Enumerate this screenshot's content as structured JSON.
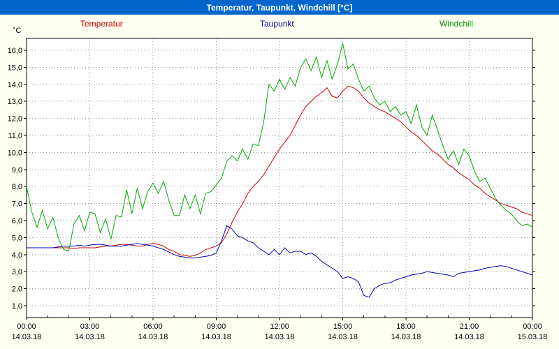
{
  "window": {
    "title": "Temperatur, Taupunkt, Windchill [°C]"
  },
  "colors": {
    "titlebar_bg": "#0066cc",
    "titlebar_text": "#ffffff",
    "page_bg": "#fffff2",
    "plot_bg": "#ffffff",
    "grid": "#999999",
    "axis": "#000000",
    "temperatur": "#cc0000",
    "taupunkt": "#0000bb",
    "windchill": "#00aa00"
  },
  "legend": [
    {
      "label": "Temperatur",
      "color": "#cc0000"
    },
    {
      "label": "Taupunkt",
      "color": "#000099"
    },
    {
      "label": "Windchill",
      "color": "#009900"
    }
  ],
  "chart_data": {
    "type": "line",
    "title": "Temperatur, Taupunkt, Windchill [°C]",
    "ylabel": "°C",
    "xlabel": "",
    "grid": true,
    "legend_position": "top",
    "ylim": [
      0.3,
      16.7
    ],
    "xlim": [
      0,
      24
    ],
    "x_step_hours": 0.25,
    "y_ticks": {
      "values": [
        1,
        2,
        3,
        4,
        5,
        6,
        7,
        8,
        9,
        10,
        11,
        12,
        13,
        14,
        15,
        16
      ],
      "labels": [
        "1,0",
        "2,0",
        "3,0",
        "4,0",
        "5,0",
        "6,0",
        "7,0",
        "8,0",
        "9,0",
        "10,0",
        "11,0",
        "12,0",
        "13,0",
        "14,0",
        "15,0",
        "16,0"
      ]
    },
    "x_ticks": [
      {
        "hour": 0,
        "time": "00:00",
        "date": "14.03.18"
      },
      {
        "hour": 3,
        "time": "03:00",
        "date": "14.03.18"
      },
      {
        "hour": 6,
        "time": "06:00",
        "date": "14.03.18"
      },
      {
        "hour": 9,
        "time": "09:00",
        "date": "14.03.18"
      },
      {
        "hour": 12,
        "time": "12:00",
        "date": "14.03.18"
      },
      {
        "hour": 15,
        "time": "15:00",
        "date": "14.03.18"
      },
      {
        "hour": 18,
        "time": "18:00",
        "date": "14.03.18"
      },
      {
        "hour": 21,
        "time": "21:00",
        "date": "14.03.18"
      },
      {
        "hour": 24,
        "time": "00:00",
        "date": "15.03.18"
      }
    ],
    "series": [
      {
        "name": "Temperatur",
        "color": "#cc0000",
        "values": [
          4.4,
          4.4,
          4.4,
          4.4,
          4.4,
          4.4,
          4.4,
          4.4,
          4.4,
          4.35,
          4.4,
          4.4,
          4.4,
          4.4,
          4.45,
          4.5,
          4.5,
          4.55,
          4.6,
          4.6,
          4.55,
          4.5,
          4.5,
          4.6,
          4.65,
          4.6,
          4.5,
          4.3,
          4.2,
          4.0,
          3.95,
          3.9,
          3.95,
          4.1,
          4.3,
          4.4,
          4.5,
          4.7,
          5.2,
          5.9,
          6.5,
          7.0,
          7.6,
          8.0,
          8.3,
          8.7,
          9.2,
          9.7,
          10.2,
          10.6,
          11.0,
          11.6,
          12.2,
          12.7,
          13.0,
          13.3,
          13.5,
          13.8,
          13.3,
          13.2,
          13.6,
          13.9,
          13.8,
          13.6,
          13.2,
          12.9,
          12.7,
          12.5,
          12.4,
          12.2,
          12.0,
          11.8,
          11.5,
          11.2,
          11.0,
          10.7,
          10.4,
          10.1,
          9.9,
          9.6,
          9.3,
          9.1,
          8.8,
          8.6,
          8.4,
          8.1,
          7.9,
          7.6,
          7.4,
          7.2,
          7.0,
          6.9,
          6.8,
          6.7,
          6.5,
          6.4,
          6.3
        ]
      },
      {
        "name": "Taupunkt",
        "color": "#0000bb",
        "values": [
          4.4,
          4.4,
          4.4,
          4.4,
          4.4,
          4.4,
          4.45,
          4.5,
          4.5,
          4.5,
          4.55,
          4.5,
          4.55,
          4.6,
          4.6,
          4.55,
          4.5,
          4.5,
          4.5,
          4.55,
          4.6,
          4.65,
          4.6,
          4.55,
          4.5,
          4.4,
          4.3,
          4.15,
          4.0,
          3.9,
          3.85,
          3.8,
          3.8,
          3.85,
          3.9,
          3.95,
          4.1,
          4.8,
          5.7,
          5.5,
          5.1,
          5.0,
          4.8,
          4.7,
          4.4,
          4.2,
          4.0,
          4.3,
          4.0,
          4.4,
          4.1,
          4.2,
          4.2,
          4.0,
          4.1,
          3.9,
          3.6,
          3.4,
          3.2,
          3.0,
          2.6,
          2.7,
          2.6,
          2.4,
          1.6,
          1.5,
          2.0,
          2.2,
          2.3,
          2.35,
          2.5,
          2.6,
          2.7,
          2.8,
          2.85,
          2.9,
          3.0,
          2.95,
          2.9,
          2.85,
          2.8,
          2.7,
          2.9,
          2.95,
          3.0,
          3.05,
          3.1,
          3.2,
          3.25,
          3.3,
          3.35,
          3.3,
          3.2,
          3.1,
          3.0,
          2.9,
          2.8
        ]
      },
      {
        "name": "Windchill",
        "color": "#00aa00",
        "values": [
          8.0,
          6.5,
          5.6,
          6.6,
          5.5,
          6.2,
          5.0,
          4.3,
          4.2,
          5.8,
          6.3,
          5.4,
          6.5,
          6.4,
          5.3,
          6.1,
          4.9,
          6.3,
          6.2,
          7.8,
          6.4,
          7.9,
          6.7,
          7.7,
          8.2,
          7.6,
          8.3,
          7.2,
          6.3,
          6.3,
          7.5,
          6.7,
          7.5,
          6.4,
          7.6,
          7.7,
          8.1,
          8.5,
          9.5,
          9.8,
          9.5,
          10.2,
          9.6,
          10.5,
          10.4,
          11.8,
          14.0,
          13.6,
          14.3,
          13.7,
          14.4,
          13.9,
          15.0,
          15.5,
          14.8,
          15.6,
          14.4,
          15.4,
          14.3,
          15.2,
          16.4,
          14.9,
          15.2,
          14.3,
          13.6,
          13.9,
          13.2,
          12.8,
          13.0,
          12.4,
          12.7,
          12.2,
          12.4,
          11.7,
          12.8,
          11.5,
          11.0,
          12.2,
          11.3,
          10.4,
          9.6,
          10.1,
          9.3,
          10.2,
          9.8,
          8.9,
          8.3,
          8.5,
          7.9,
          7.3,
          6.9,
          6.6,
          6.4,
          6.0,
          5.7,
          5.8,
          5.6
        ]
      }
    ]
  }
}
